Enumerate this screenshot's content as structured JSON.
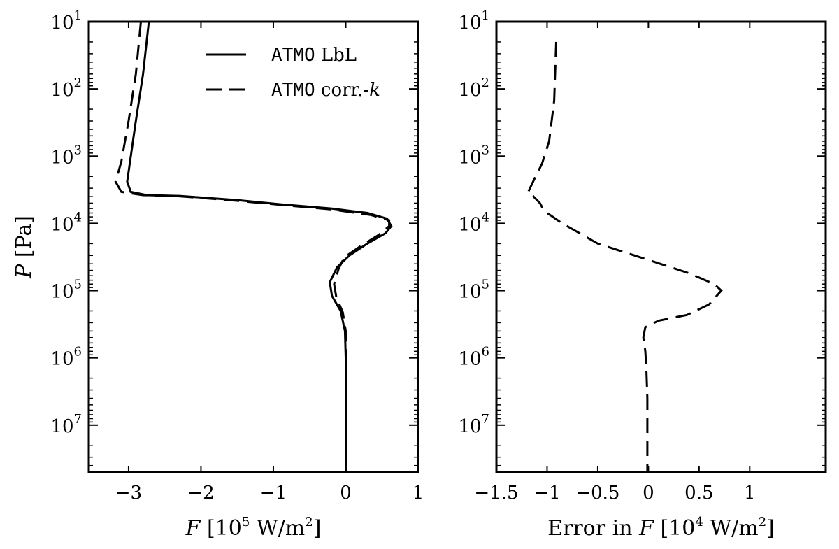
{
  "chart_data": [
    {
      "type": "line",
      "xlabel": {
        "pre": "",
        "var": "F",
        "post": " [10",
        "sup": "5",
        "post2": " W/m",
        "sup2": "2",
        "end": "]"
      },
      "ylabel": {
        "var": "P",
        "post": " [Pa]"
      },
      "xlim": [
        -3.55,
        1.0
      ],
      "ylim": [
        10,
        50000000
      ],
      "y_scale": "log",
      "y_inverted": true,
      "x_ticks": [
        {
          "value": -3,
          "label": "−3"
        },
        {
          "value": -2,
          "label": "−2"
        },
        {
          "value": -1,
          "label": "−1"
        },
        {
          "value": 0,
          "label": "0"
        },
        {
          "value": 1,
          "label": "1"
        }
      ],
      "y_ticks": [
        {
          "value": 10,
          "base": "10",
          "exp": "1"
        },
        {
          "value": 100,
          "base": "10",
          "exp": "2"
        },
        {
          "value": 1000,
          "base": "10",
          "exp": "3"
        },
        {
          "value": 10000,
          "base": "10",
          "exp": "4"
        },
        {
          "value": 100000,
          "base": "10",
          "exp": "5"
        },
        {
          "value": 1000000,
          "base": "10",
          "exp": "6"
        },
        {
          "value": 10000000,
          "base": "10",
          "exp": "7"
        }
      ],
      "legend": {
        "placement": "top-right",
        "entries": [
          {
            "code": "ATMO",
            "text": " LbL",
            "var": "",
            "style": "solid"
          },
          {
            "code": "ATMO",
            "text": " corr.-",
            "var": "k",
            "style": "dashed"
          }
        ]
      },
      "series": [
        {
          "style": "solid",
          "points": [
            [
              -2.72,
              10
            ],
            [
              -2.8,
              60
            ],
            [
              -2.9,
              300
            ],
            [
              -2.98,
              1200
            ],
            [
              -3.02,
              2400
            ],
            [
              -2.97,
              3400
            ],
            [
              -2.75,
              3800
            ],
            [
              -2.3,
              3900
            ],
            [
              -1.5,
              4500
            ],
            [
              -0.9,
              5200
            ],
            [
              -0.2,
              6000
            ],
            [
              0.3,
              7000
            ],
            [
              0.57,
              8500
            ],
            [
              0.63,
              11000
            ],
            [
              0.55,
              14000
            ],
            [
              0.3,
              20000
            ],
            [
              0.05,
              30000
            ],
            [
              -0.12,
              45000
            ],
            [
              -0.22,
              75000
            ],
            [
              -0.19,
              120000
            ],
            [
              -0.07,
              200000
            ],
            [
              -0.01,
              400000
            ],
            [
              0.0,
              1000000
            ],
            [
              0.0,
              50000000
            ]
          ]
        },
        {
          "style": "dashed",
          "points": [
            [
              -2.83,
              10
            ],
            [
              -2.9,
              60
            ],
            [
              -3.0,
              300
            ],
            [
              -3.1,
              1200
            ],
            [
              -3.18,
              2400
            ],
            [
              -3.1,
              3400
            ],
            [
              -2.8,
              3800
            ],
            [
              -2.3,
              3950
            ],
            [
              -1.5,
              4600
            ],
            [
              -0.9,
              5300
            ],
            [
              -0.2,
              6200
            ],
            [
              0.35,
              7500
            ],
            [
              0.6,
              9000
            ],
            [
              0.6,
              11000
            ],
            [
              0.45,
              15000
            ],
            [
              0.2,
              22000
            ],
            [
              -0.02,
              32000
            ],
            [
              -0.1,
              48000
            ],
            [
              -0.16,
              80000
            ],
            [
              -0.13,
              125000
            ],
            [
              -0.04,
              210000
            ],
            [
              0.0,
              400000
            ],
            [
              0.0,
              1000000
            ],
            [
              0.0,
              50000000
            ]
          ]
        }
      ]
    },
    {
      "type": "line",
      "xlabel": {
        "pre": "Error in ",
        "var": "F",
        "post": " [10",
        "sup": "4",
        "post2": " W/m",
        "sup2": "2",
        "end": "]"
      },
      "ylabel": null,
      "xlim": [
        -1.5,
        1.75
      ],
      "ylim": [
        10,
        50000000
      ],
      "y_scale": "log",
      "y_inverted": true,
      "x_ticks": [
        {
          "value": -1.5,
          "label": "−1.5"
        },
        {
          "value": -1.0,
          "label": "−1"
        },
        {
          "value": -0.5,
          "label": "−0.5"
        },
        {
          "value": 0.0,
          "label": "0"
        },
        {
          "value": 0.5,
          "label": "0.5"
        },
        {
          "value": 1.0,
          "label": "1"
        }
      ],
      "y_ticks": [
        {
          "value": 10,
          "base": "10",
          "exp": "1"
        },
        {
          "value": 100,
          "base": "10",
          "exp": "2"
        },
        {
          "value": 1000,
          "base": "10",
          "exp": "3"
        },
        {
          "value": 10000,
          "base": "10",
          "exp": "4"
        },
        {
          "value": 100000,
          "base": "10",
          "exp": "5"
        },
        {
          "value": 1000000,
          "base": "10",
          "exp": "6"
        },
        {
          "value": 10000000,
          "base": "10",
          "exp": "7"
        }
      ],
      "series": [
        {
          "style": "dashed",
          "points": [
            [
              -0.91,
              20
            ],
            [
              -0.93,
              150
            ],
            [
              -0.98,
              600
            ],
            [
              -1.05,
              1300
            ],
            [
              -1.12,
              2100
            ],
            [
              -1.19,
              3500
            ],
            [
              -1.14,
              3900
            ],
            [
              -1.07,
              5000
            ],
            [
              -1.03,
              6500
            ],
            [
              -0.85,
              10000
            ],
            [
              -0.5,
              20000
            ],
            [
              0.0,
              35000
            ],
            [
              0.4,
              55000
            ],
            [
              0.65,
              80000
            ],
            [
              0.72,
              100000
            ],
            [
              0.6,
              160000
            ],
            [
              0.38,
              230000
            ],
            [
              0.1,
              280000
            ],
            [
              -0.03,
              350000
            ],
            [
              -0.05,
              500000
            ],
            [
              -0.03,
              800000
            ],
            [
              -0.02,
              1500000
            ],
            [
              -0.01,
              4000000
            ],
            [
              -0.01,
              50000000
            ]
          ]
        }
      ]
    }
  ]
}
